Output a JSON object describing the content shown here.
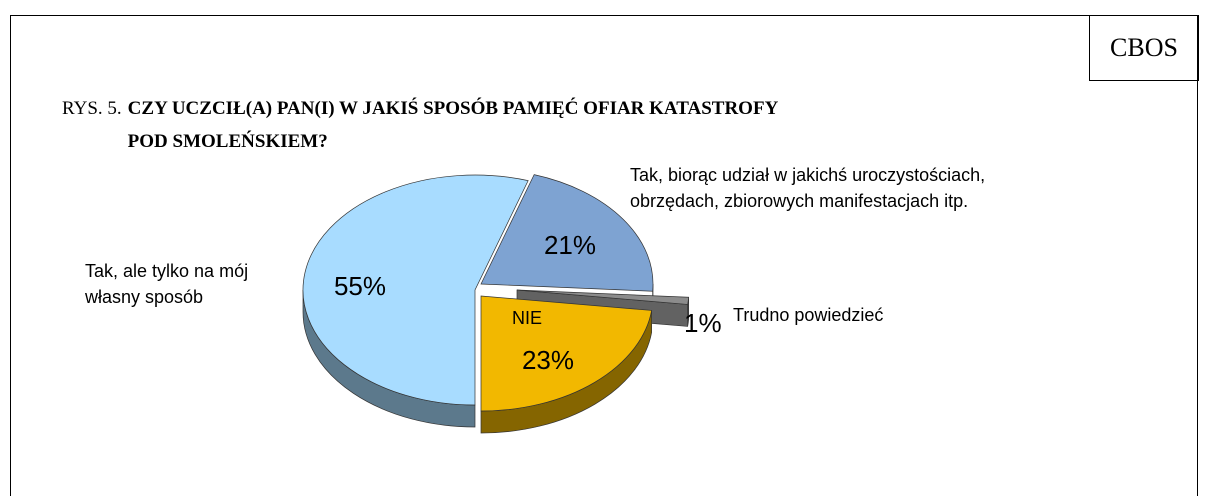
{
  "chart_data": {
    "type": "pie",
    "source": "CBOS",
    "title_prefix": "RYS. 5.",
    "title": "CZY UCZCIŁ(A) PAN(I) W JAKIŚ SPOSÓB PAMIĘĆ OFIAR KATASTROFY\nPOD SMOLEŃSKIEM?",
    "categories": [
      "Tak, biorąc udział w jakichś uroczystościach,\nobrzędach, zbiorowych manifestacjach itp.",
      "Trudno powiedzieć",
      "NIE",
      "Tak, ale tylko na mój\nwłasny sposób"
    ],
    "values": [
      21,
      1,
      23,
      55
    ],
    "value_labels": [
      "21%",
      "1%",
      "23%",
      "55%"
    ],
    "colors": [
      "#7ea3d2",
      "#8c8c8c",
      "#f2b800",
      "#a8dcff"
    ]
  }
}
